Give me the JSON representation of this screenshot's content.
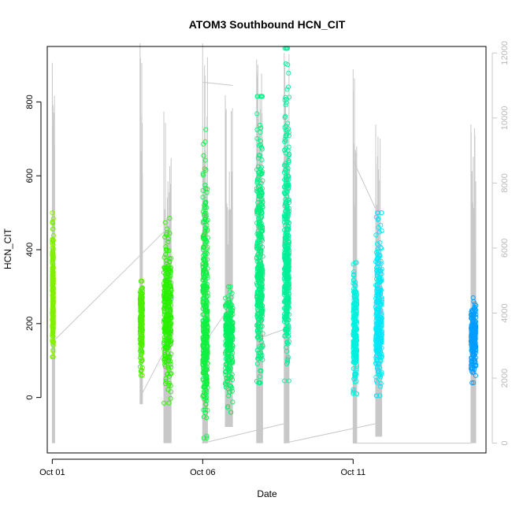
{
  "chart_data": {
    "type": "scatter",
    "title": "ATOM3 Southbound HCN_CIT",
    "xlabel": "Date",
    "ylabel": "HCN_CIT",
    "x_type": "date",
    "xlim": [
      "2019-09-30T20:00",
      "2019-10-15T10:00"
    ],
    "ylim": [
      -150,
      950
    ],
    "y_ticks": [
      0,
      200,
      400,
      600,
      800
    ],
    "x_ticks": [
      {
        "date": "2019-10-01T00:00",
        "label": "Oct 01"
      },
      {
        "date": "2019-10-06T00:00",
        "label": "Oct 06"
      },
      {
        "date": "2019-10-11T00:00",
        "label": "Oct 11"
      }
    ],
    "y2lim": [
      -300,
      12200
    ],
    "y2_ticks": [
      0,
      2000,
      4000,
      6000,
      8000,
      10000,
      12000
    ],
    "y2_color": "#c8c8c8",
    "grid": false,
    "legend": "none",
    "series": [
      {
        "kind": "points",
        "marker": "open-circle",
        "clusters": [
          {
            "start": "2019-10-01T00:00",
            "end": "2019-10-01T01:00",
            "median": 260,
            "low": 110,
            "high": 500,
            "color": "#80f000"
          },
          {
            "start": "2019-10-03T22:00",
            "end": "2019-10-04T00:00",
            "median": 230,
            "low": 60,
            "high": 315,
            "color": "#4cf000"
          },
          {
            "start": "2019-10-04T17:00",
            "end": "2019-10-04T23:00",
            "median": 240,
            "low": -15,
            "high": 485,
            "color": "#28f000"
          },
          {
            "start": "2019-10-06T00:00",
            "end": "2019-10-06T04:00",
            "median": 200,
            "low": -110,
            "high": 725,
            "color": "#10f040"
          },
          {
            "start": "2019-10-06T18:00",
            "end": "2019-10-07T00:00",
            "median": 175,
            "low": -40,
            "high": 300,
            "color": "#00f060"
          },
          {
            "start": "2019-10-07T19:00",
            "end": "2019-10-08T00:00",
            "median": 350,
            "low": 40,
            "high": 815,
            "color": "#00f080"
          },
          {
            "start": "2019-10-08T17:00",
            "end": "2019-10-08T21:00",
            "median": 380,
            "low": 45,
            "high": 945,
            "color": "#00f09a"
          },
          {
            "start": "2019-10-11T00:00",
            "end": "2019-10-11T03:00",
            "median": 185,
            "low": 10,
            "high": 365,
            "color": "#00f0e0"
          },
          {
            "start": "2019-10-11T18:00",
            "end": "2019-10-11T23:00",
            "median": 200,
            "low": 5,
            "high": 500,
            "color": "#00e8f8"
          },
          {
            "start": "2019-10-14T22:00",
            "end": "2019-10-15T02:00",
            "median": 165,
            "low": 40,
            "high": 270,
            "color": "#009cff"
          }
        ]
      },
      {
        "kind": "line",
        "axis": "right",
        "color": "#c8c8c8",
        "segments": [
          {
            "start": "2019-10-01T00:00",
            "end": "2019-10-01T02:00",
            "low": 0,
            "high": 11700
          },
          {
            "start": "2019-10-03T22:00",
            "end": "2019-10-04T00:00",
            "low": 1200,
            "high": 12300
          },
          {
            "start": "2019-10-04T17:00",
            "end": "2019-10-04T23:00",
            "low": 0,
            "high": 10200
          },
          {
            "start": "2019-10-06T00:00",
            "end": "2019-10-06T04:00",
            "low": 0,
            "high": 12300
          },
          {
            "start": "2019-10-06T18:00",
            "end": "2019-10-07T00:00",
            "low": 500,
            "high": 10700
          },
          {
            "start": "2019-10-07T19:00",
            "end": "2019-10-08T00:00",
            "low": 0,
            "high": 11800
          },
          {
            "start": "2019-10-08T17:00",
            "end": "2019-10-08T21:00",
            "low": 0,
            "high": 12000
          },
          {
            "start": "2019-10-11T00:00",
            "end": "2019-10-11T03:00",
            "low": 0,
            "high": 11500
          },
          {
            "start": "2019-10-11T18:00",
            "end": "2019-10-11T23:00",
            "low": 200,
            "high": 9800
          },
          {
            "start": "2019-10-14T22:00",
            "end": "2019-10-15T02:00",
            "low": 0,
            "high": 9800
          }
        ],
        "connectors": [
          {
            "from": "2019-10-01T00:00",
            "from_y": 3100,
            "to": "2019-10-04T17:00",
            "to_y": 6500
          },
          {
            "from": "2019-10-03T22:00",
            "from_y": 1400,
            "to": "2019-10-04T17:00",
            "to_y": 2800
          },
          {
            "from": "2019-10-06T00:00",
            "from_y": 0,
            "to": "2019-10-08T17:00",
            "to_y": 600
          },
          {
            "from": "2019-10-06T00:00",
            "from_y": 11100,
            "to": "2019-10-07T00:00",
            "to_y": 11000
          },
          {
            "from": "2019-10-06T00:00",
            "from_y": 3000,
            "to": "2019-10-06T18:00",
            "to_y": 4000
          },
          {
            "from": "2019-10-07T19:00",
            "from_y": 3200,
            "to": "2019-10-08T17:00",
            "to_y": 3500
          },
          {
            "from": "2019-10-08T17:00",
            "from_y": 0,
            "to": "2019-10-11T18:00",
            "to_y": 600
          },
          {
            "from": "2019-10-11T00:00",
            "from_y": 8700,
            "to": "2019-10-11T18:00",
            "to_y": 7200
          },
          {
            "from": "2019-10-11T00:00",
            "from_y": 0,
            "to": "2019-10-14T22:00",
            "to_y": 0
          }
        ]
      }
    ]
  }
}
